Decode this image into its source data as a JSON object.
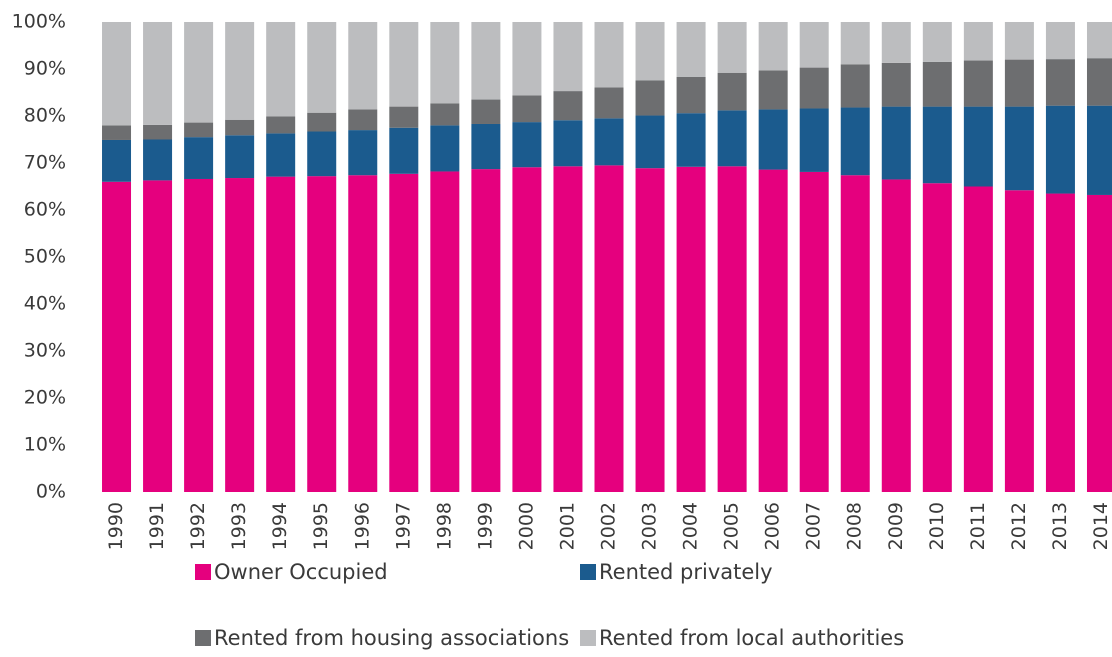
{
  "chart_data": {
    "type": "stacked_bar",
    "categories": [
      "1990",
      "1991",
      "1992",
      "1993",
      "1994",
      "1995",
      "1996",
      "1997",
      "1998",
      "1999",
      "2000",
      "2001",
      "2002",
      "2003",
      "2004",
      "2005",
      "2006",
      "2007",
      "2008",
      "2009",
      "2010",
      "2011",
      "2012",
      "2013",
      "2014"
    ],
    "series": [
      {
        "name": "Owner Occupied",
        "color": "#e5007e",
        "values": [
          66,
          66.3,
          66.6,
          66.8,
          67.1,
          67.2,
          67.4,
          67.7,
          68.2,
          68.7,
          69.1,
          69.3,
          69.5,
          68.9,
          69.2,
          69.3,
          68.6,
          68.1,
          67.4,
          66.5,
          65.7,
          65.0,
          64.2,
          63.5,
          63.2
        ]
      },
      {
        "name": "Rented privately",
        "color": "#1b5b8e",
        "values": [
          8.9,
          8.7,
          8.9,
          9.1,
          9.2,
          9.5,
          9.6,
          9.8,
          9.8,
          9.6,
          9.6,
          9.8,
          10.0,
          11.2,
          11.4,
          11.9,
          12.8,
          13.5,
          14.4,
          15.5,
          16.3,
          17.0,
          17.8,
          18.7,
          19.0
        ]
      },
      {
        "name": "Rented from housing associations",
        "color": "#6d6e70",
        "values": [
          3.1,
          3.1,
          3.1,
          3.3,
          3.6,
          4.0,
          4.4,
          4.5,
          4.7,
          5.2,
          5.7,
          6.2,
          6.6,
          7.5,
          7.7,
          8.0,
          8.3,
          8.7,
          9.2,
          9.3,
          9.5,
          9.8,
          10.0,
          9.9,
          10.1
        ]
      },
      {
        "name": "Rented from local authorities",
        "color": "#bcbdbf",
        "values": [
          22,
          21.9,
          21.4,
          20.8,
          20.1,
          19.3,
          18.6,
          18,
          17.3,
          16.5,
          15.6,
          14.7,
          13.9,
          12.4,
          11.7,
          10.8,
          10.3,
          9.7,
          9,
          8.7,
          8.5,
          8.2,
          8,
          7.9,
          7.7
        ]
      }
    ],
    "ylim": [
      0,
      100
    ],
    "yticks": [
      {
        "value": 0,
        "label": "0%"
      },
      {
        "value": 10,
        "label": "10%"
      },
      {
        "value": 20,
        "label": "20%"
      },
      {
        "value": 30,
        "label": "30%"
      },
      {
        "value": 40,
        "label": "40%"
      },
      {
        "value": 50,
        "label": "50%"
      },
      {
        "value": 60,
        "label": "60%"
      },
      {
        "value": 70,
        "label": "70%"
      },
      {
        "value": 80,
        "label": "80%"
      },
      {
        "value": 90,
        "label": "90%"
      },
      {
        "value": 100,
        "label": "100%"
      }
    ],
    "legend": "bottom"
  }
}
